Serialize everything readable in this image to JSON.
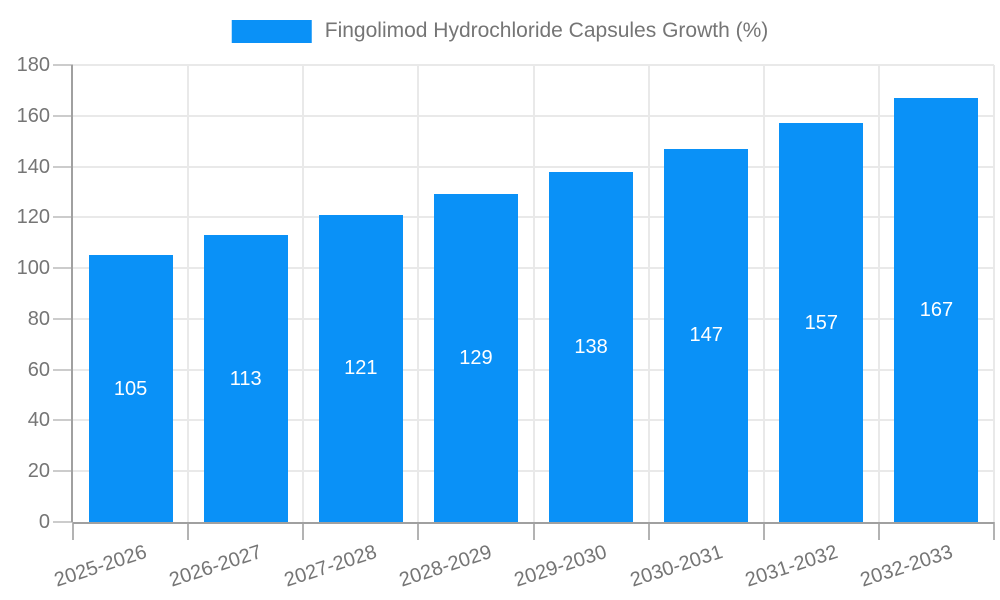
{
  "chart_data": {
    "type": "bar",
    "title": "Fingolimod Hydrochloride Capsules Growth (%)",
    "categories": [
      "2025-2026",
      "2026-2027",
      "2027-2028",
      "2028-2029",
      "2029-2030",
      "2030-2031",
      "2031-2032",
      "2032-2033"
    ],
    "values": [
      105,
      113,
      121,
      129,
      138,
      147,
      157,
      167
    ],
    "xlabel": "",
    "ylabel": "",
    "ylim": [
      0,
      180
    ],
    "ytick_step": 20,
    "ytick_labels": [
      "0",
      "20",
      "40",
      "60",
      "80",
      "100",
      "120",
      "140",
      "160",
      "180"
    ],
    "grid": true,
    "legend_position": "top-center",
    "bar_color": "#0a91f7",
    "value_label_color": "#ffffff"
  },
  "colors": {
    "background": "#ffffff",
    "grid": "#e9e9e9",
    "axis": "#a0a0a0",
    "y_tick": "#cccccc",
    "x_tick": "#b3b3b3",
    "text": "#757575"
  }
}
